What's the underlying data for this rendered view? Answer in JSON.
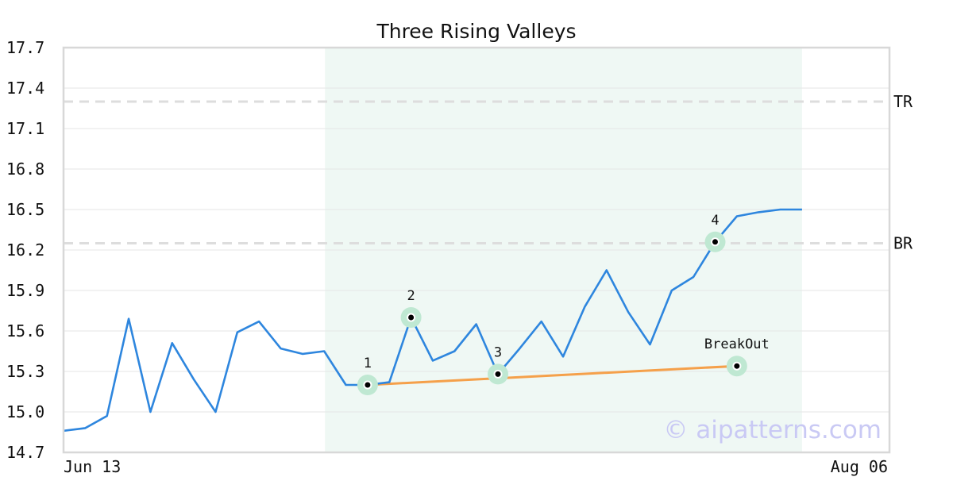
{
  "chart_data": {
    "type": "line",
    "title": "Three Rising Valleys",
    "ylim": [
      14.7,
      17.7
    ],
    "yticks": [
      "17.7",
      "17.4",
      "17.1",
      "16.8",
      "16.5",
      "16.2",
      "15.9",
      "15.6",
      "15.3",
      "15.0",
      "14.7"
    ],
    "xtick_labels": [
      "Jun 13",
      "Aug 06"
    ],
    "grid": true,
    "series": [
      {
        "values": [
          14.86,
          14.88,
          14.97,
          15.69,
          15.0,
          15.51,
          15.24,
          15.0,
          15.59,
          15.67,
          15.47,
          15.43,
          15.45,
          15.2,
          15.2,
          15.22,
          15.7,
          15.38,
          15.45,
          15.65,
          15.28,
          15.47,
          15.67,
          15.41,
          15.78,
          16.05,
          15.74,
          15.5,
          15.9,
          16.0,
          16.26,
          16.45,
          16.48,
          16.5,
          16.5
        ]
      }
    ],
    "horizontal_lines": [
      {
        "label": "TR",
        "value": 17.3
      },
      {
        "label": "BR",
        "value": 16.25
      }
    ],
    "highlight_region": {
      "start_index": 12,
      "end_index": 34
    },
    "points": [
      {
        "label": "1",
        "index": 14,
        "value": 15.2
      },
      {
        "label": "2",
        "index": 16,
        "value": 15.7
      },
      {
        "label": "3",
        "index": 20,
        "value": 15.28
      },
      {
        "label": "4",
        "index": 30,
        "value": 16.26
      },
      {
        "label": "BreakOut",
        "index": 31,
        "value": 15.34
      }
    ],
    "trendline": {
      "from_point": "1",
      "to_point": "BreakOut"
    },
    "colors": {
      "series": "#2e86de",
      "trendline": "#f5a04a",
      "highlight": "#eff8f4",
      "point_halo": "#bfe8d2",
      "reference_line": "#dddddd",
      "grid": "#e6e6e6",
      "frame": "#d8d8d8"
    }
  },
  "watermark": "© aipatterns.com"
}
